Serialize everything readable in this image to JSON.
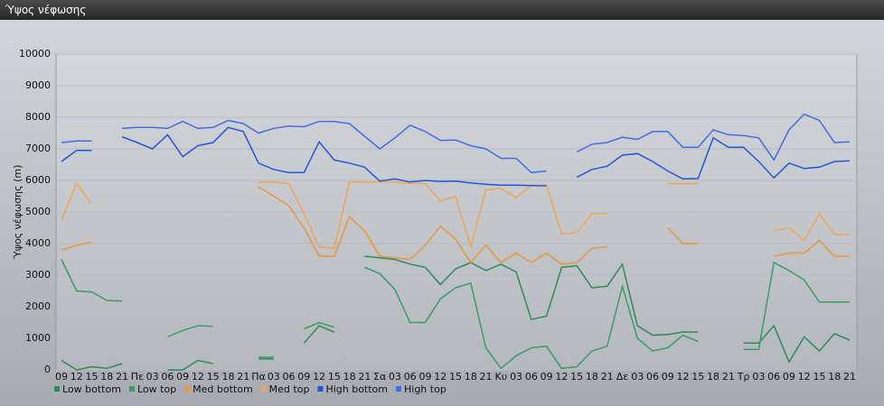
{
  "chart_data": {
    "type": "line",
    "title": "Ύψος νέφωσης",
    "y_label": "Ύψος νέφωσης (m)",
    "categories": [
      "09",
      "12",
      "15",
      "18",
      "21",
      "Πε",
      "03",
      "06",
      "09",
      "12",
      "15",
      "18",
      "21",
      "Πα",
      "03",
      "06",
      "09",
      "12",
      "15",
      "18",
      "21",
      "Σα",
      "03",
      "06",
      "09",
      "12",
      "15",
      "18",
      "21",
      "Κυ",
      "03",
      "06",
      "09",
      "12",
      "15",
      "18",
      "21",
      "Δε",
      "03",
      "06",
      "09",
      "12",
      "15",
      "18",
      "21",
      "Τρ",
      "03",
      "06",
      "09",
      "12",
      "15",
      "18",
      "21"
    ],
    "ylim": [
      0,
      10000
    ],
    "yticks": [
      0,
      1000,
      2000,
      3000,
      4000,
      5000,
      6000,
      7000,
      8000,
      9000,
      10000
    ],
    "grid": true,
    "series": [
      {
        "name": "Low bottom",
        "color": "#2e8b57",
        "values": [
          300,
          0,
          100,
          50,
          200,
          null,
          null,
          0,
          0,
          300,
          200,
          null,
          null,
          350,
          350,
          null,
          850,
          1400,
          1200,
          null,
          3600,
          3550,
          3500,
          3350,
          3250,
          2700,
          3200,
          3400,
          3150,
          3350,
          3100,
          1600,
          1700,
          3250,
          3300,
          2600,
          2650,
          3350,
          1400,
          1100,
          1120,
          1200,
          1200,
          null,
          null,
          850,
          850,
          1400,
          250,
          1050,
          600,
          1150,
          950
        ]
      },
      {
        "name": "Low top",
        "color": "#3a9d63",
        "values": [
          3500,
          2500,
          2470,
          2200,
          2180,
          null,
          null,
          1050,
          1250,
          1400,
          1380,
          null,
          null,
          400,
          400,
          null,
          1300,
          1500,
          1350,
          null,
          3250,
          3050,
          2550,
          1500,
          1500,
          2250,
          2600,
          2750,
          700,
          50,
          450,
          700,
          750,
          50,
          100,
          600,
          750,
          2650,
          1000,
          600,
          700,
          1100,
          900,
          null,
          null,
          650,
          650,
          3400,
          3150,
          2850,
          2150,
          2150,
          2150
        ]
      },
      {
        "name": "Med bottom",
        "color": "#e8973a",
        "values": [
          3800,
          3950,
          4050,
          null,
          null,
          null,
          null,
          null,
          null,
          null,
          null,
          null,
          null,
          5800,
          5500,
          5200,
          4500,
          3600,
          3600,
          4850,
          4400,
          3600,
          3550,
          3500,
          3950,
          4550,
          4150,
          3400,
          3950,
          3400,
          3700,
          3400,
          3700,
          3350,
          3400,
          3850,
          3900,
          null,
          null,
          null,
          4500,
          4000,
          4000,
          null,
          null,
          null,
          null,
          3600,
          3700,
          3700,
          4100,
          3600,
          3600
        ]
      },
      {
        "name": "Med top",
        "color": "#f0a45a",
        "values": [
          4750,
          5900,
          5250,
          null,
          null,
          null,
          null,
          null,
          null,
          null,
          null,
          null,
          null,
          5950,
          5950,
          5900,
          4950,
          3900,
          3850,
          5950,
          5950,
          5950,
          5950,
          5900,
          5900,
          5350,
          5500,
          3900,
          5700,
          5750,
          5450,
          5850,
          5850,
          4300,
          4350,
          4950,
          4950,
          null,
          null,
          null,
          5900,
          5900,
          5900,
          null,
          null,
          null,
          null,
          4400,
          4500,
          4100,
          4950,
          4300,
          4270
        ]
      },
      {
        "name": "High bottom",
        "color": "#2456d8",
        "values": [
          6600,
          6950,
          6950,
          null,
          7380,
          7200,
          7000,
          7450,
          6750,
          7100,
          7200,
          7680,
          7550,
          6550,
          6350,
          6250,
          6250,
          7220,
          6650,
          6550,
          6420,
          5980,
          6050,
          5950,
          6000,
          5970,
          5980,
          5920,
          5880,
          5850,
          5850,
          5840,
          5830,
          null,
          6100,
          6350,
          6450,
          6800,
          6850,
          6600,
          6300,
          6050,
          6060,
          7350,
          7050,
          7050,
          6600,
          6080,
          6550,
          6380,
          6420,
          6600,
          6620
        ]
      },
      {
        "name": "High top",
        "color": "#3f6fe4",
        "values": [
          7200,
          7250,
          7250,
          null,
          7650,
          7680,
          7680,
          7650,
          7870,
          7650,
          7680,
          7900,
          7800,
          7500,
          7650,
          7720,
          7700,
          7870,
          7870,
          7800,
          7400,
          7000,
          7350,
          7750,
          7550,
          7270,
          7280,
          7100,
          7000,
          6700,
          6700,
          6250,
          6300,
          null,
          6900,
          7150,
          7200,
          7370,
          7300,
          7550,
          7550,
          7050,
          7050,
          7600,
          7450,
          7420,
          7350,
          6650,
          7600,
          8100,
          7900,
          7200,
          7220
        ]
      }
    ]
  }
}
